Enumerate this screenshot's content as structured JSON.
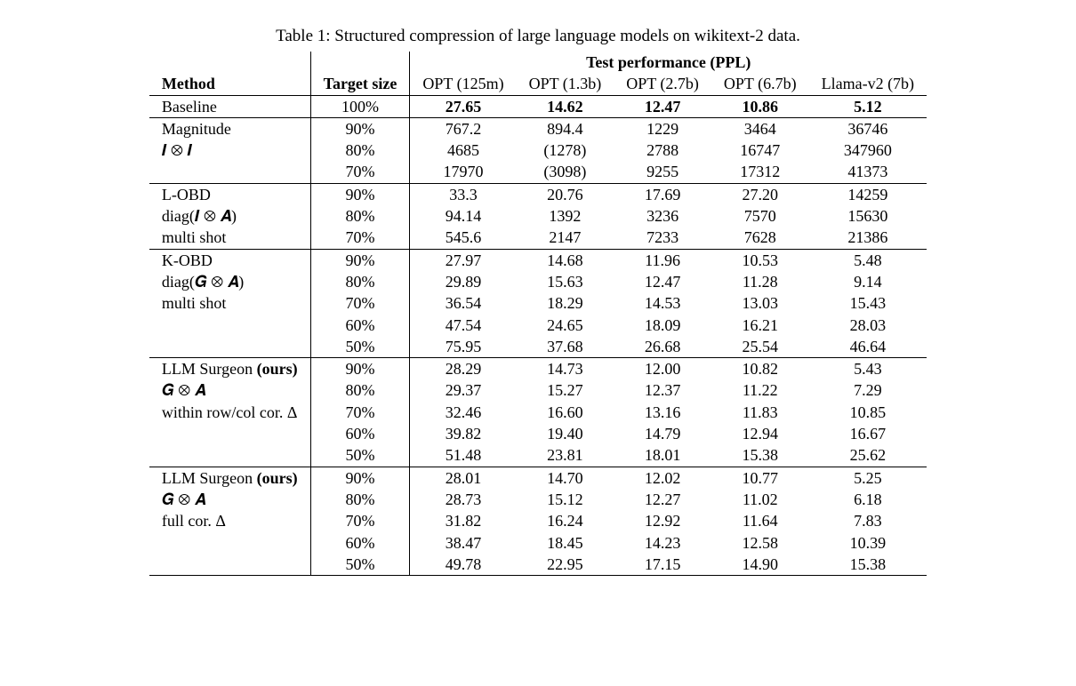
{
  "caption": "Table 1: Structured compression of large language models on wikitext-2 data.",
  "columns": {
    "method": "Method",
    "target_size": "Target size",
    "ppl_header": "Test performance (PPL)",
    "models": [
      "OPT (125m)",
      "OPT (1.3b)",
      "OPT (2.7b)",
      "OPT (6.7b)",
      "Llama-v2 (7b)"
    ]
  },
  "sections": [
    {
      "method_lines": [
        "Baseline"
      ],
      "rows": [
        {
          "ts": "100%",
          "vals": [
            "27.65",
            "14.62",
            "12.47",
            "10.86",
            "5.12"
          ],
          "bold": true
        }
      ]
    },
    {
      "method_lines": [
        "Magnitude",
        "𝑰 ⊗ 𝑰"
      ],
      "rows": [
        {
          "ts": "90%",
          "vals": [
            "767.2",
            "894.4",
            "1229",
            "3464",
            "36746"
          ]
        },
        {
          "ts": "80%",
          "vals": [
            "4685",
            "(1278)",
            "2788",
            "16747",
            "347960"
          ]
        },
        {
          "ts": "70%",
          "vals": [
            "17970",
            "(3098)",
            "9255",
            "17312",
            "41373"
          ]
        }
      ]
    },
    {
      "method_lines": [
        "L-OBD",
        "diag(𝑰 ⊗ 𝑨)",
        "multi shot"
      ],
      "rows": [
        {
          "ts": "90%",
          "vals": [
            "33.3",
            "20.76",
            "17.69",
            "27.20",
            "14259"
          ]
        },
        {
          "ts": "80%",
          "vals": [
            "94.14",
            "1392",
            "3236",
            "7570",
            "15630"
          ]
        },
        {
          "ts": "70%",
          "vals": [
            "545.6",
            "2147",
            "7233",
            "7628",
            "21386"
          ]
        }
      ]
    },
    {
      "method_lines": [
        "K-OBD",
        "diag(𝑮 ⊗ 𝑨)",
        "multi shot"
      ],
      "rows": [
        {
          "ts": "90%",
          "vals": [
            "27.97",
            "14.68",
            "11.96",
            "10.53",
            "5.48"
          ]
        },
        {
          "ts": "80%",
          "vals": [
            "29.89",
            "15.63",
            "12.47",
            "11.28",
            "9.14"
          ]
        },
        {
          "ts": "70%",
          "vals": [
            "36.54",
            "18.29",
            "14.53",
            "13.03",
            "15.43"
          ]
        },
        {
          "ts": "60%",
          "vals": [
            "47.54",
            "24.65",
            "18.09",
            "16.21",
            "28.03"
          ]
        },
        {
          "ts": "50%",
          "vals": [
            "75.95",
            "37.68",
            "26.68",
            "25.54",
            "46.64"
          ]
        }
      ]
    },
    {
      "method_lines": [
        "LLM Surgeon (ours)",
        "𝑮 ⊗ 𝑨",
        "within row/col cor. Δ"
      ],
      "ours": true,
      "rows": [
        {
          "ts": "90%",
          "vals": [
            "28.29",
            "14.73",
            "12.00",
            "10.82",
            "5.43"
          ]
        },
        {
          "ts": "80%",
          "vals": [
            "29.37",
            "15.27",
            "12.37",
            "11.22",
            "7.29"
          ]
        },
        {
          "ts": "70%",
          "vals": [
            "32.46",
            "16.60",
            "13.16",
            "11.83",
            "10.85"
          ]
        },
        {
          "ts": "60%",
          "vals": [
            "39.82",
            "19.40",
            "14.79",
            "12.94",
            "16.67"
          ]
        },
        {
          "ts": "50%",
          "vals": [
            "51.48",
            "23.81",
            "18.01",
            "15.38",
            "25.62"
          ]
        }
      ]
    },
    {
      "method_lines": [
        "LLM Surgeon (ours)",
        "𝑮 ⊗ 𝑨",
        "full cor. Δ"
      ],
      "ours": true,
      "rows": [
        {
          "ts": "90%",
          "vals": [
            "28.01",
            "14.70",
            "12.02",
            "10.77",
            "5.25"
          ]
        },
        {
          "ts": "80%",
          "vals": [
            "28.73",
            "15.12",
            "12.27",
            "11.02",
            "6.18"
          ]
        },
        {
          "ts": "70%",
          "vals": [
            "31.82",
            "16.24",
            "12.92",
            "11.64",
            "7.83"
          ]
        },
        {
          "ts": "60%",
          "vals": [
            "38.47",
            "18.45",
            "14.23",
            "12.58",
            "10.39"
          ]
        },
        {
          "ts": "50%",
          "vals": [
            "49.78",
            "22.95",
            "17.15",
            "14.90",
            "15.38"
          ]
        }
      ]
    }
  ],
  "style": {
    "background_color": "#ffffff",
    "text_color": "#000000",
    "rule_color": "#000000",
    "font_family": "Times New Roman, serif",
    "caption_fontsize_pt": 19,
    "body_fontsize_pt": 18
  }
}
